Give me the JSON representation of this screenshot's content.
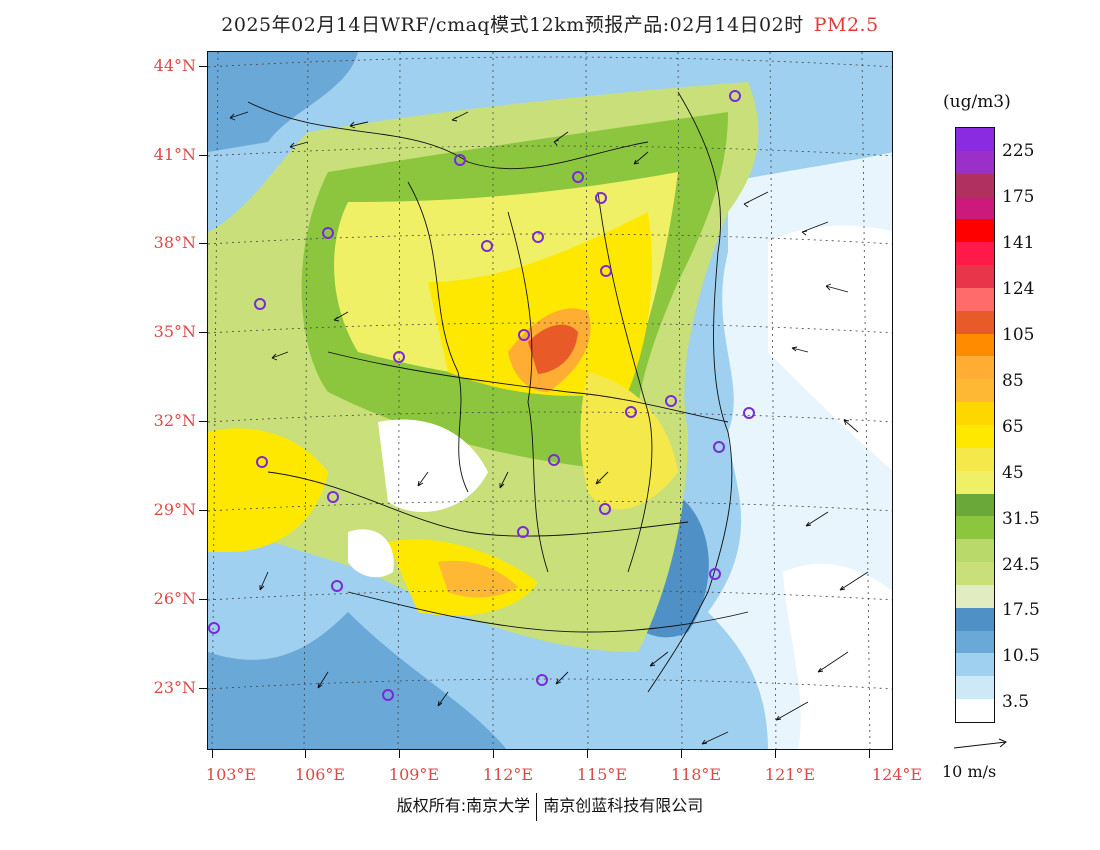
{
  "title": {
    "main": "2025年02月14日WRF/cmaq模式12km预报产品:02月14日02时",
    "pollutant": "PM2.5"
  },
  "latitude_labels": [
    "44°N",
    "41°N",
    "38°N",
    "35°N",
    "32°N",
    "29°N",
    "26°N",
    "23°N"
  ],
  "longitude_labels": [
    "103°E",
    "106°E",
    "109°E",
    "112°E",
    "115°E",
    "118°E",
    "121°E",
    "124°E"
  ],
  "colorbar": {
    "unit": "(ug/m3)",
    "labels": [
      "225",
      "175",
      "141",
      "124",
      "105",
      "85",
      "65",
      "45",
      "31.5",
      "24.5",
      "17.5",
      "10.5",
      "3.5"
    ],
    "colors": [
      "#8a2be2",
      "#9b30c8",
      "#b03060",
      "#cc1a7a",
      "#ff0000",
      "#ff1a4a",
      "#e8354a",
      "#ff6a6a",
      "#e85a28",
      "#ff8c00",
      "#ffad33",
      "#ffb833",
      "#ffd700",
      "#ffe800",
      "#f5e84a",
      "#f0f066",
      "#6aa83a",
      "#8cc63e",
      "#b9d96a",
      "#c9e07a",
      "#e1ecc0",
      "#4f91c7",
      "#6aa8d8",
      "#9fd0ef",
      "#cde9f7",
      "#ffffff"
    ]
  },
  "wind_legend": {
    "label": "10 m/s"
  },
  "footer": {
    "left": "版权所有:南京大学",
    "right": "南京创蓝科技有限公司"
  }
}
